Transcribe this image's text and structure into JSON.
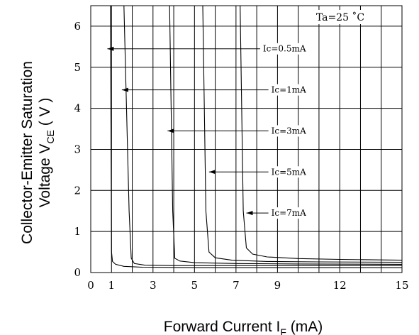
{
  "chart_data": {
    "type": "line",
    "ylabel_main": "Collector-Emitter Saturation",
    "ylabel_sub_prefix": "Voltage V",
    "ylabel_sub_subscript": "CE",
    "ylabel_sub_suffix": " ( V )",
    "xlabel_prefix": "Forward Current I",
    "xlabel_subscript": "F",
    "xlabel_suffix": " (mA)",
    "condition": "Ta=25 ˚C",
    "xlim": [
      0,
      15
    ],
    "ylim": [
      0,
      6.5
    ],
    "x_ticks": [
      0,
      1,
      3,
      5,
      7,
      9,
      12,
      15
    ],
    "x_tick_labels": [
      "0",
      "1",
      "3",
      "5",
      "7",
      "9",
      "12",
      "15"
    ],
    "y_ticks": [
      0,
      1,
      2,
      3,
      4,
      5,
      6
    ],
    "y_tick_labels": [
      "0",
      "1",
      "2",
      "3",
      "4",
      "5",
      "6"
    ],
    "x_gridlines": [
      1,
      2,
      3,
      4,
      5,
      6,
      7,
      8,
      9,
      10,
      11,
      12,
      13,
      14,
      15
    ],
    "y_gridlines": [
      1,
      2,
      3,
      4,
      5,
      6
    ],
    "grid": true,
    "series": [
      {
        "name": "Ic=0.5mA",
        "x": [
          0.95,
          1.0,
          1.05,
          1.2,
          1.6,
          2.5,
          5,
          10,
          15
        ],
        "y": [
          6.5,
          0.5,
          0.27,
          0.2,
          0.15,
          0.13,
          0.12,
          0.12,
          0.12
        ],
        "arrow_y": 5.45
      },
      {
        "name": "Ic=1mA",
        "x": [
          1.6,
          1.85,
          1.95,
          2.1,
          2.6,
          4,
          8,
          15
        ],
        "y": [
          6.5,
          1.5,
          0.35,
          0.22,
          0.18,
          0.17,
          0.17,
          0.17
        ],
        "arrow_y": 4.45
      },
      {
        "name": "Ic=3mA",
        "x": [
          3.8,
          3.95,
          4.05,
          4.3,
          5,
          7,
          10,
          15
        ],
        "y": [
          6.5,
          1.5,
          0.35,
          0.28,
          0.24,
          0.22,
          0.21,
          0.2
        ],
        "arrow_y": 3.45
      },
      {
        "name": "Ic=5mA",
        "x": [
          5.4,
          5.55,
          5.7,
          6.0,
          6.8,
          8.5,
          11,
          15
        ],
        "y": [
          6.5,
          1.5,
          0.5,
          0.36,
          0.3,
          0.27,
          0.26,
          0.25
        ],
        "arrow_y": 2.45
      },
      {
        "name": "Ic=7mA",
        "x": [
          7.2,
          7.35,
          7.5,
          7.8,
          8.5,
          10,
          12,
          15
        ],
        "y": [
          6.5,
          1.5,
          0.6,
          0.45,
          0.38,
          0.34,
          0.32,
          0.3
        ],
        "arrow_y": 1.45
      }
    ],
    "annotations": [
      {
        "label": "Ic=0.5mA",
        "y": 5.45,
        "arrow_x": 0.8,
        "text_x": 8.3
      },
      {
        "label": "Ic=1mA",
        "y": 4.45,
        "arrow_x": 1.5,
        "text_x": 8.7
      },
      {
        "label": "Ic=3mA",
        "y": 3.45,
        "arrow_x": 3.7,
        "text_x": 8.7
      },
      {
        "label": "Ic=5mA",
        "y": 2.45,
        "arrow_x": 5.7,
        "text_x": 8.7
      },
      {
        "label": "Ic=7mA",
        "y": 1.45,
        "arrow_x": 7.5,
        "text_x": 8.7
      }
    ]
  }
}
